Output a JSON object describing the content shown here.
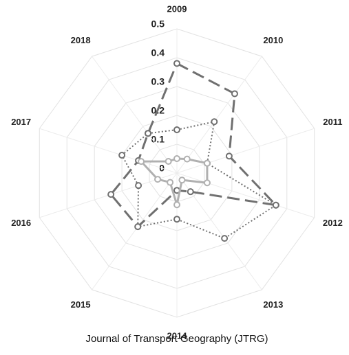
{
  "chart_data": {
    "type": "radar",
    "title": "Journal of Transport Geography (JTRG)",
    "categories": [
      "2009",
      "2010",
      "2011",
      "2012",
      "2013",
      "2014",
      "2015",
      "2016",
      "2017",
      "2018"
    ],
    "series": [
      {
        "color": "#707070",
        "style": "dashed",
        "values": [
          0.38,
          0.34,
          0.19,
          0.36,
          0.08,
          0.06,
          0.23,
          0.24,
          0.14,
          0.17
        ]
      },
      {
        "color": "#707070",
        "style": "dotted",
        "values": [
          0.15,
          0.22,
          0.11,
          0.36,
          0.28,
          0.16,
          0.23,
          0.14,
          0.2,
          0.17
        ]
      },
      {
        "color": "#b0b0b0",
        "style": "solid",
        "values": [
          0.05,
          0.06,
          0.11,
          0.11,
          0.03,
          0.11,
          0.04,
          0.07,
          0.13,
          0.05
        ]
      }
    ],
    "rlim": [
      0,
      0.5
    ],
    "rticks": [
      0,
      0.1,
      0.2,
      0.3,
      0.4,
      0.5
    ]
  }
}
